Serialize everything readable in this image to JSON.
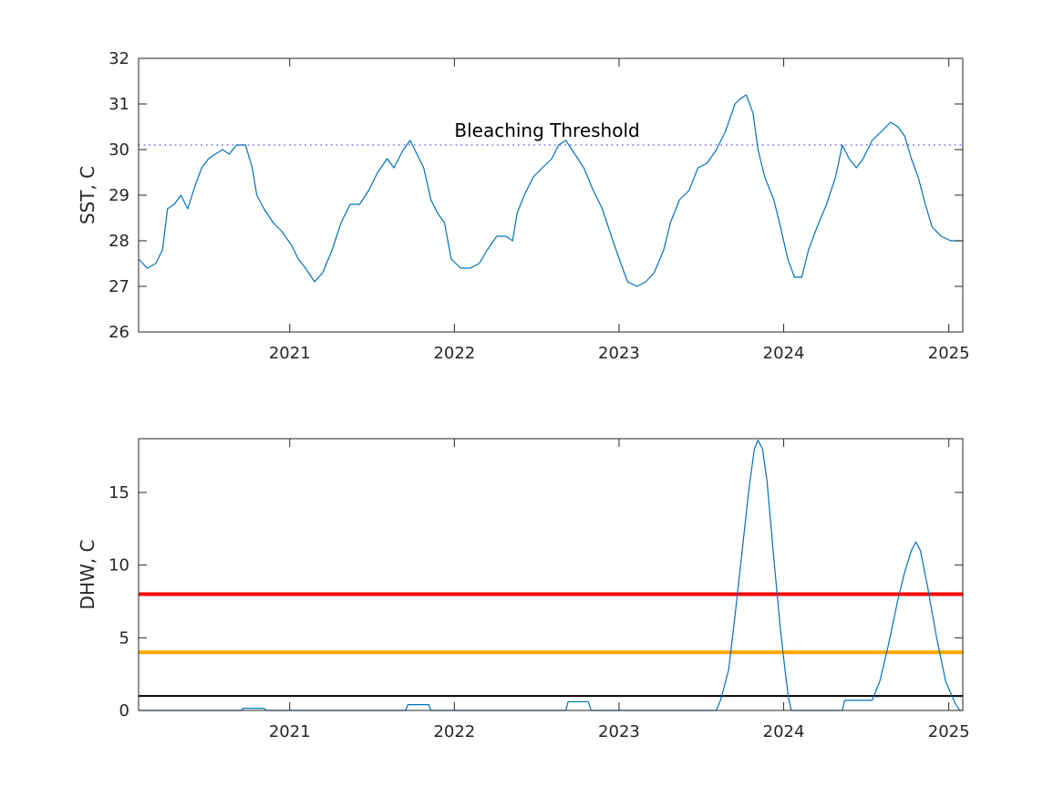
{
  "chart_data": [
    {
      "type": "line",
      "ylabel": "SST, C",
      "xlabel": "",
      "xlim": [
        "2020-02-01",
        "2025-02-01"
      ],
      "ylim": [
        26,
        32
      ],
      "x_ticks": [
        "2021",
        "2022",
        "2023",
        "2024",
        "2025"
      ],
      "y_ticks": [
        "26",
        "27",
        "28",
        "29",
        "30",
        "31",
        "32"
      ],
      "grid": false,
      "annotations": [
        {
          "text": "Bleaching Threshold",
          "x": "2022-01-01",
          "y": 30.3
        }
      ],
      "reference_lines": [
        {
          "y": 30.1,
          "style": "dotted",
          "color": "#6666ff"
        }
      ],
      "series": [
        {
          "color": "#0072bd",
          "points": [
            [
              "2020-02-01",
              27.6
            ],
            [
              "2020-02-20",
              27.4
            ],
            [
              "2020-03-10",
              27.5
            ],
            [
              "2020-03-25",
              27.8
            ],
            [
              "2020-04-05",
              28.7
            ],
            [
              "2020-04-20",
              28.8
            ],
            [
              "2020-05-05",
              29.0
            ],
            [
              "2020-05-20",
              28.7
            ],
            [
              "2020-06-05",
              29.2
            ],
            [
              "2020-06-20",
              29.6
            ],
            [
              "2020-07-05",
              29.8
            ],
            [
              "2020-07-20",
              29.9
            ],
            [
              "2020-08-05",
              30.0
            ],
            [
              "2020-08-20",
              29.9
            ],
            [
              "2020-09-05",
              30.1
            ],
            [
              "2020-09-25",
              30.1
            ],
            [
              "2020-10-10",
              29.6
            ],
            [
              "2020-10-20",
              29.0
            ],
            [
              "2020-11-05",
              28.7
            ],
            [
              "2020-11-25",
              28.4
            ],
            [
              "2020-12-15",
              28.2
            ],
            [
              "2021-01-05",
              27.9
            ],
            [
              "2021-01-20",
              27.6
            ],
            [
              "2021-02-05",
              27.4
            ],
            [
              "2021-02-25",
              27.1
            ],
            [
              "2021-03-15",
              27.3
            ],
            [
              "2021-04-05",
              27.8
            ],
            [
              "2021-04-25",
              28.4
            ],
            [
              "2021-05-15",
              28.8
            ],
            [
              "2021-06-05",
              28.8
            ],
            [
              "2021-06-25",
              29.1
            ],
            [
              "2021-07-15",
              29.5
            ],
            [
              "2021-08-05",
              29.8
            ],
            [
              "2021-08-20",
              29.6
            ],
            [
              "2021-09-10",
              30.0
            ],
            [
              "2021-09-25",
              30.2
            ],
            [
              "2021-10-10",
              29.9
            ],
            [
              "2021-10-25",
              29.6
            ],
            [
              "2021-11-10",
              28.9
            ],
            [
              "2021-11-25",
              28.6
            ],
            [
              "2021-12-10",
              28.4
            ],
            [
              "2021-12-25",
              27.6
            ],
            [
              "2022-01-15",
              27.4
            ],
            [
              "2022-02-05",
              27.4
            ],
            [
              "2022-02-25",
              27.5
            ],
            [
              "2022-03-15",
              27.8
            ],
            [
              "2022-04-05",
              28.1
            ],
            [
              "2022-04-25",
              28.1
            ],
            [
              "2022-05-10",
              28.0
            ],
            [
              "2022-05-20",
              28.6
            ],
            [
              "2022-06-05",
              29.0
            ],
            [
              "2022-06-25",
              29.4
            ],
            [
              "2022-07-15",
              29.6
            ],
            [
              "2022-08-05",
              29.8
            ],
            [
              "2022-08-20",
              30.1
            ],
            [
              "2022-09-05",
              30.2
            ],
            [
              "2022-09-25",
              29.9
            ],
            [
              "2022-10-15",
              29.6
            ],
            [
              "2022-11-05",
              29.1
            ],
            [
              "2022-11-25",
              28.7
            ],
            [
              "2022-12-15",
              28.1
            ],
            [
              "2023-01-05",
              27.5
            ],
            [
              "2023-01-20",
              27.1
            ],
            [
              "2023-02-10",
              27.0
            ],
            [
              "2023-03-01",
              27.1
            ],
            [
              "2023-03-20",
              27.3
            ],
            [
              "2023-04-10",
              27.8
            ],
            [
              "2023-04-25",
              28.4
            ],
            [
              "2023-05-15",
              28.9
            ],
            [
              "2023-06-05",
              29.1
            ],
            [
              "2023-06-25",
              29.6
            ],
            [
              "2023-07-15",
              29.7
            ],
            [
              "2023-08-05",
              30.0
            ],
            [
              "2023-08-25",
              30.4
            ],
            [
              "2023-09-15",
              31.0
            ],
            [
              "2023-09-25",
              31.1
            ],
            [
              "2023-10-10",
              31.2
            ],
            [
              "2023-10-25",
              30.8
            ],
            [
              "2023-11-05",
              30.0
            ],
            [
              "2023-11-20",
              29.4
            ],
            [
              "2023-12-10",
              28.9
            ],
            [
              "2023-12-25",
              28.3
            ],
            [
              "2024-01-10",
              27.6
            ],
            [
              "2024-01-25",
              27.2
            ],
            [
              "2024-02-10",
              27.2
            ],
            [
              "2024-02-25",
              27.8
            ],
            [
              "2024-03-15",
              28.3
            ],
            [
              "2024-04-05",
              28.8
            ],
            [
              "2024-04-25",
              29.4
            ],
            [
              "2024-05-10",
              30.1
            ],
            [
              "2024-05-25",
              29.8
            ],
            [
              "2024-06-10",
              29.6
            ],
            [
              "2024-06-25",
              29.8
            ],
            [
              "2024-07-15",
              30.2
            ],
            [
              "2024-08-05",
              30.4
            ],
            [
              "2024-08-25",
              30.6
            ],
            [
              "2024-09-10",
              30.5
            ],
            [
              "2024-09-25",
              30.3
            ],
            [
              "2024-10-10",
              29.8
            ],
            [
              "2024-10-25",
              29.4
            ],
            [
              "2024-11-10",
              28.8
            ],
            [
              "2024-11-25",
              28.3
            ],
            [
              "2024-12-15",
              28.1
            ],
            [
              "2025-01-05",
              28.0
            ],
            [
              "2025-01-25",
              28.0
            ],
            [
              "2025-02-01",
              28.0
            ]
          ]
        }
      ]
    },
    {
      "type": "line",
      "ylabel": "DHW, C",
      "xlabel": "",
      "xlim": [
        "2020-02-01",
        "2025-02-01"
      ],
      "ylim": [
        0,
        18.7
      ],
      "x_ticks": [
        "2021",
        "2022",
        "2023",
        "2024",
        "2025"
      ],
      "y_ticks": [
        "0",
        "5",
        "10",
        "15"
      ],
      "grid": false,
      "reference_lines": [
        {
          "y": 8,
          "style": "solid",
          "color": "#ff0000"
        },
        {
          "y": 4,
          "style": "solid",
          "color": "#ffa500"
        },
        {
          "y": 1,
          "style": "solid",
          "color": "#000000"
        }
      ],
      "series": [
        {
          "color": "#0072bd",
          "points": [
            [
              "2020-02-01",
              0.0
            ],
            [
              "2020-09-15",
              0.0
            ],
            [
              "2020-09-20",
              0.15
            ],
            [
              "2020-11-05",
              0.15
            ],
            [
              "2020-11-10",
              0.0
            ],
            [
              "2021-09-15",
              0.0
            ],
            [
              "2021-09-20",
              0.4
            ],
            [
              "2021-11-05",
              0.4
            ],
            [
              "2021-11-10",
              0.0
            ],
            [
              "2022-09-05",
              0.0
            ],
            [
              "2022-09-10",
              0.6
            ],
            [
              "2022-10-25",
              0.6
            ],
            [
              "2022-10-31",
              0.0
            ],
            [
              "2023-08-05",
              0.0
            ],
            [
              "2023-08-15",
              0.8
            ],
            [
              "2023-09-01",
              2.8
            ],
            [
              "2023-09-15",
              6.5
            ],
            [
              "2023-10-01",
              11.0
            ],
            [
              "2023-10-15",
              15.0
            ],
            [
              "2023-10-28",
              18.0
            ],
            [
              "2023-11-05",
              18.6
            ],
            [
              "2023-11-15",
              18.0
            ],
            [
              "2023-11-25",
              15.8
            ],
            [
              "2023-12-10",
              10.5
            ],
            [
              "2023-12-25",
              5.5
            ],
            [
              "2024-01-05",
              2.5
            ],
            [
              "2024-01-12",
              0.8
            ],
            [
              "2024-01-18",
              0.0
            ],
            [
              "2024-05-10",
              0.0
            ],
            [
              "2024-05-15",
              0.7
            ],
            [
              "2024-07-15",
              0.7
            ],
            [
              "2024-08-01",
              2.0
            ],
            [
              "2024-08-20",
              4.5
            ],
            [
              "2024-09-10",
              7.6
            ],
            [
              "2024-09-25",
              9.5
            ],
            [
              "2024-10-10",
              11.0
            ],
            [
              "2024-10-20",
              11.6
            ],
            [
              "2024-10-30",
              11.0
            ],
            [
              "2024-11-15",
              8.5
            ],
            [
              "2024-12-05",
              5.0
            ],
            [
              "2024-12-25",
              2.0
            ],
            [
              "2025-01-15",
              0.5
            ],
            [
              "2025-01-25",
              0.0
            ],
            [
              "2025-02-01",
              0.0
            ]
          ]
        }
      ]
    }
  ]
}
